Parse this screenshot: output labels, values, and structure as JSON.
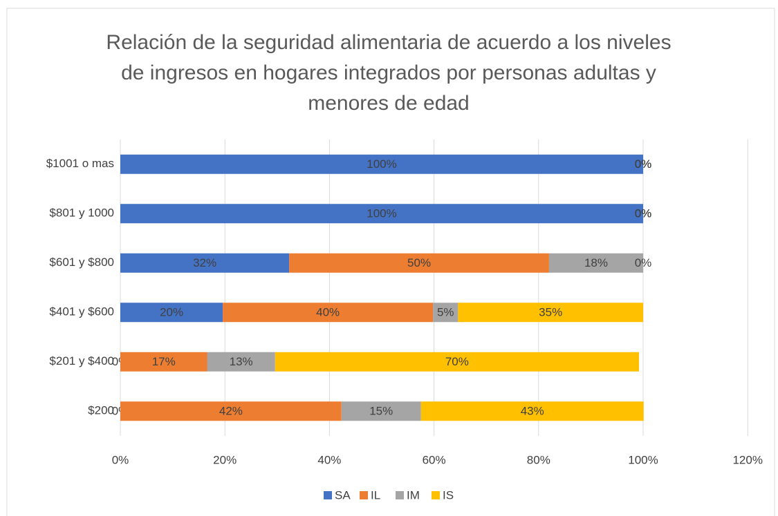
{
  "chart_data": {
    "type": "stacked-bar-horizontal",
    "title": "Relación de la seguridad alimentaria de acuerdo a los niveles de ingresos en hogares integrados por personas adultas y menores de edad",
    "categories": [
      "$1001 o mas",
      "$801 y 1000",
      "$601 y $800",
      "$401 y $600",
      "$201 y $400",
      "$200"
    ],
    "series": [
      {
        "name": "SA",
        "color": "#4472c4",
        "values": [
          100,
          100,
          32.3,
          19.6,
          0,
          0
        ],
        "value_labels": [
          "100%",
          "100%",
          "32%",
          "20%",
          "0%",
          "0%"
        ]
      },
      {
        "name": "IL",
        "color": "#ed7d31",
        "values": [
          0,
          0,
          49.7,
          40.2,
          16.6,
          42.3
        ],
        "value_labels": [
          "0%",
          "0%",
          "50%",
          "40%",
          "17%",
          "42%"
        ]
      },
      {
        "name": "IM",
        "color": "#a5a5a5",
        "values": [
          0,
          0,
          18,
          4.8,
          13,
          15.2
        ],
        "value_labels": [
          "0%",
          "0%",
          "18%",
          "5%",
          "13%",
          "15%"
        ]
      },
      {
        "name": "IS",
        "color": "#ffc000",
        "values": [
          0,
          0,
          0,
          35.4,
          69.6,
          42.6
        ],
        "value_labels": [
          "0%",
          "0%",
          "0%",
          "35%",
          "70%",
          "43%"
        ]
      }
    ],
    "xlim": [
      0,
      120
    ],
    "xticks": [
      {
        "value": 0,
        "label": "0%"
      },
      {
        "value": 20,
        "label": "20%"
      },
      {
        "value": 40,
        "label": "40%"
      },
      {
        "value": 60,
        "label": "60%"
      },
      {
        "value": 80,
        "label": "80%"
      },
      {
        "value": 100,
        "label": "100%"
      },
      {
        "value": 120,
        "label": "120%"
      }
    ],
    "grid": true,
    "legend": "bottom"
  }
}
